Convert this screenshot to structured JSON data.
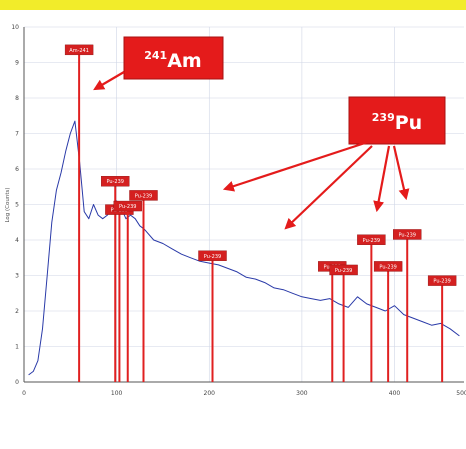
{
  "colors": {
    "top_band": "#f2ec2a",
    "spectrum": "#2a3aa8",
    "peak_line": "#e02020",
    "peak_tag": "#d42020",
    "callout_box": "#e41b1b",
    "axis": "#555555",
    "grid": "#cfd6e6"
  },
  "chart_data": {
    "type": "line",
    "title": "",
    "xlabel": "",
    "ylabel": "Log (Counts)",
    "xlim": [
      0,
      475
    ],
    "ylim": [
      0,
      10
    ],
    "x_ticks": [
      "0",
      "100",
      "200",
      "300",
      "400",
      "500"
    ],
    "y_ticks": [
      "0",
      "1",
      "2",
      "3",
      "4",
      "5",
      "6",
      "7",
      "8",
      "9",
      "10"
    ],
    "grid": "both",
    "series": [
      {
        "x": [
          5,
          10,
          15,
          20,
          25,
          30,
          35,
          40,
          45,
          50,
          55,
          60,
          65,
          70,
          75,
          80,
          85,
          90,
          95,
          100,
          105,
          110,
          115,
          120,
          125,
          130,
          140,
          150,
          160,
          170,
          180,
          190,
          200,
          210,
          220,
          230,
          240,
          250,
          260,
          270,
          280,
          290,
          300,
          310,
          320,
          330,
          340,
          350,
          360,
          370,
          380,
          390,
          400,
          410,
          420,
          430,
          440,
          450,
          460,
          470
        ],
        "y": [
          0.2,
          0.3,
          0.6,
          1.5,
          3.0,
          4.5,
          5.4,
          5.9,
          6.5,
          7.0,
          7.35,
          6.2,
          4.8,
          4.6,
          5.0,
          4.7,
          4.6,
          4.7,
          4.9,
          5.1,
          4.9,
          4.6,
          4.7,
          4.6,
          4.4,
          4.3,
          4.0,
          3.9,
          3.75,
          3.6,
          3.5,
          3.4,
          3.35,
          3.3,
          3.2,
          3.1,
          2.95,
          2.9,
          2.8,
          2.65,
          2.6,
          2.5,
          2.4,
          2.35,
          2.3,
          2.35,
          2.2,
          2.1,
          2.4,
          2.2,
          2.1,
          2.0,
          2.15,
          1.9,
          1.8,
          1.7,
          1.6,
          1.65,
          1.5,
          1.3
        ]
      }
    ],
    "peaks": [
      {
        "x": 59.5,
        "y": 9.3,
        "label": "Am-241"
      },
      {
        "x": 98.5,
        "y": 5.6,
        "label": "Pu-239"
      },
      {
        "x": 103.0,
        "y": 4.8,
        "label": "Pu-239"
      },
      {
        "x": 112.0,
        "y": 4.9,
        "label": "Pu-239"
      },
      {
        "x": 129.0,
        "y": 5.2,
        "label": "Pu-239"
      },
      {
        "x": 203.5,
        "y": 3.5,
        "label": "Pu-239"
      },
      {
        "x": 332.8,
        "y": 3.2,
        "label": "Pu-239"
      },
      {
        "x": 345.0,
        "y": 3.1,
        "label": "Pu-239"
      },
      {
        "x": 375.0,
        "y": 3.95,
        "label": "Pu-239"
      },
      {
        "x": 393.1,
        "y": 3.2,
        "label": "Pu-239"
      },
      {
        "x": 413.7,
        "y": 4.1,
        "label": "Pu-239"
      },
      {
        "x": 451.4,
        "y": 2.8,
        "label": "Pu-239"
      }
    ],
    "annotations": [
      {
        "sup": "241",
        "text": "Am"
      },
      {
        "sup": "239",
        "text": "Pu"
      }
    ]
  }
}
